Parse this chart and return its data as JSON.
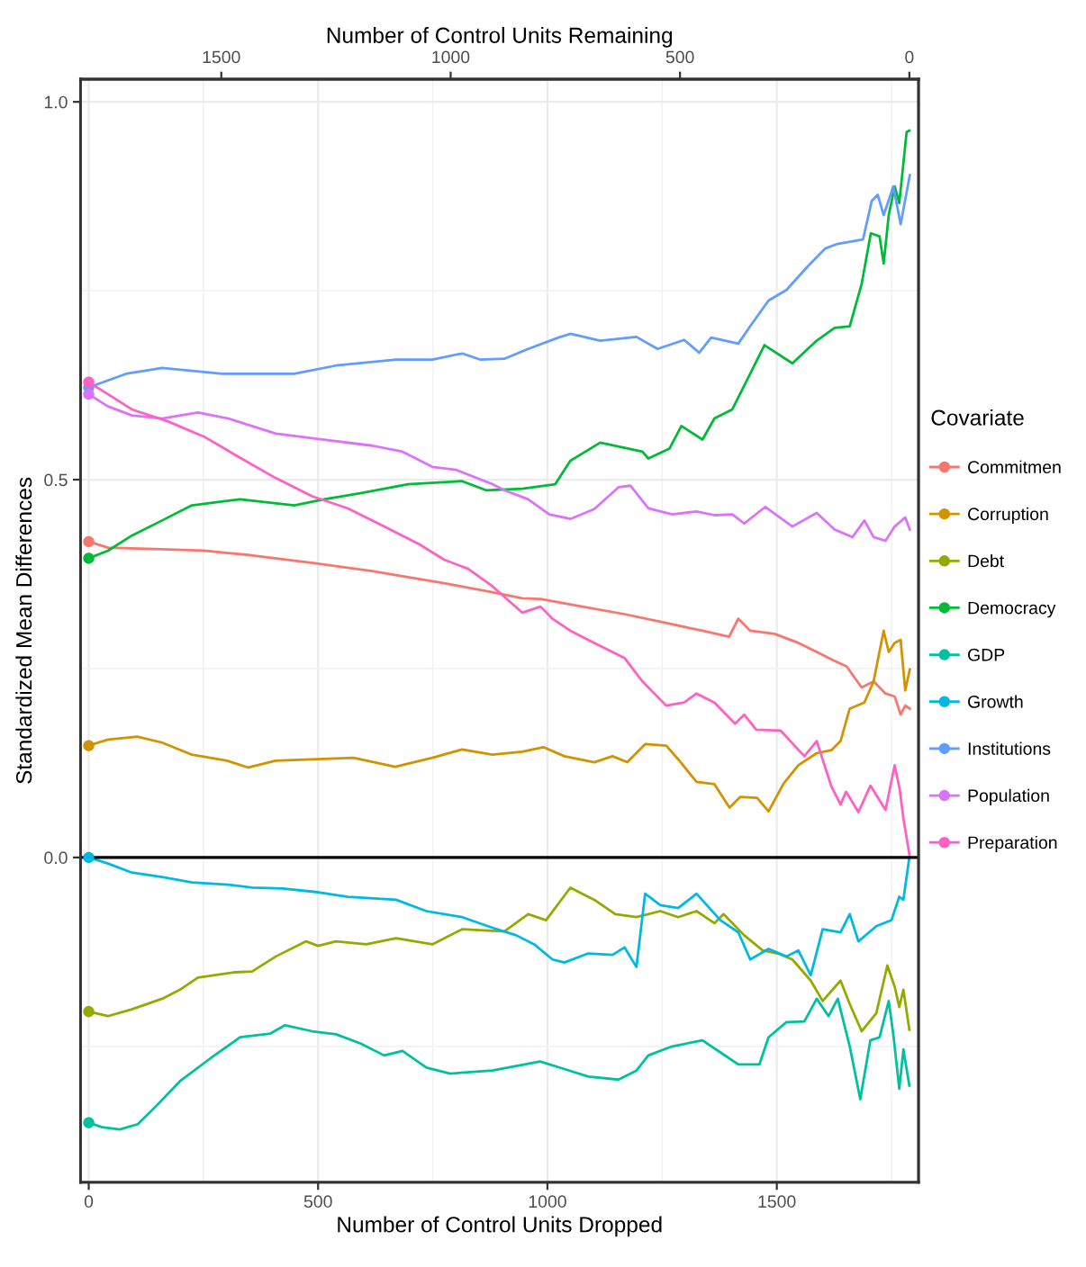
{
  "chart_data": {
    "type": "line",
    "xlabel": "Number of Control Units Dropped",
    "x2label": "Number of Control Units Remaining",
    "ylabel": "Standardized Mean Differences",
    "legend_title": "Covariate",
    "xlim": [
      -18,
      1809
    ],
    "xticks": [
      0,
      500,
      1000,
      1500
    ],
    "x2lim": [
      1807,
      -20
    ],
    "x2ticks": [
      1500,
      1000,
      500,
      0
    ],
    "ylim": [
      -0.43,
      1.03
    ],
    "yticks": [
      {
        "value": 0,
        "label": "0.0"
      },
      {
        "value": 0.5,
        "label": "0.5"
      },
      {
        "value": 1,
        "label": "1.0"
      }
    ],
    "grid": true,
    "legend": "right",
    "line_style": "solid",
    "ref_lines": [
      {
        "axis": "y",
        "value": 0,
        "color": "#000000"
      }
    ],
    "series": [
      {
        "name": "Commitmen",
        "color": "#f8766d",
        "x": [
          0,
          42,
          160,
          251,
          354,
          485,
          618,
          696,
          775,
          880,
          945,
          985,
          1076,
          1168,
          1246,
          1338,
          1396,
          1416,
          1442,
          1495,
          1547,
          1587,
          1626,
          1652,
          1685,
          1711,
          1737,
          1757,
          1770,
          1780,
          1790
        ],
        "values": [
          0.418,
          0.41,
          0.408,
          0.406,
          0.4,
          0.39,
          0.379,
          0.371,
          0.363,
          0.351,
          0.343,
          0.342,
          0.332,
          0.322,
          0.312,
          0.3,
          0.292,
          0.316,
          0.3,
          0.296,
          0.284,
          0.272,
          0.26,
          0.253,
          0.225,
          0.233,
          0.217,
          0.213,
          0.189,
          0.201,
          0.197
        ]
      },
      {
        "name": "Corruption",
        "color": "#d39200",
        "x": [
          0,
          42,
          106,
          160,
          225,
          302,
          348,
          407,
          498,
          577,
          668,
          749,
          814,
          880,
          945,
          991,
          1037,
          1102,
          1142,
          1174,
          1213,
          1259,
          1285,
          1325,
          1364,
          1397,
          1420,
          1457,
          1482,
          1515,
          1547,
          1587,
          1619,
          1639,
          1659,
          1691,
          1711,
          1733,
          1744,
          1757,
          1770,
          1780,
          1790
        ],
        "values": [
          0.148,
          0.156,
          0.16,
          0.152,
          0.136,
          0.128,
          0.119,
          0.128,
          0.13,
          0.132,
          0.12,
          0.132,
          0.143,
          0.136,
          0.14,
          0.146,
          0.134,
          0.126,
          0.134,
          0.126,
          0.15,
          0.148,
          0.13,
          0.1,
          0.097,
          0.066,
          0.08,
          0.079,
          0.061,
          0.098,
          0.122,
          0.138,
          0.142,
          0.154,
          0.197,
          0.205,
          0.233,
          0.3,
          0.272,
          0.284,
          0.288,
          0.221,
          0.249
        ]
      },
      {
        "name": "Debt",
        "color": "#93aa00",
        "x": [
          0,
          42,
          94,
          160,
          199,
          238,
          317,
          356,
          408,
          474,
          500,
          539,
          605,
          670,
          749,
          814,
          906,
          958,
          997,
          1050,
          1102,
          1148,
          1194,
          1246,
          1285,
          1325,
          1364,
          1384,
          1429,
          1469,
          1502,
          1534,
          1574,
          1600,
          1639,
          1659,
          1685,
          1717,
          1741,
          1757,
          1767,
          1776,
          1789
        ],
        "values": [
          -0.204,
          -0.21,
          -0.201,
          -0.187,
          -0.175,
          -0.159,
          -0.152,
          -0.151,
          -0.131,
          -0.111,
          -0.117,
          -0.111,
          -0.115,
          -0.107,
          -0.115,
          -0.095,
          -0.098,
          -0.075,
          -0.083,
          -0.04,
          -0.056,
          -0.075,
          -0.079,
          -0.071,
          -0.079,
          -0.071,
          -0.087,
          -0.075,
          -0.103,
          -0.123,
          -0.127,
          -0.135,
          -0.163,
          -0.19,
          -0.163,
          -0.194,
          -0.23,
          -0.206,
          -0.143,
          -0.171,
          -0.198,
          -0.175,
          -0.228
        ]
      },
      {
        "name": "Democracy",
        "color": "#00ba38",
        "x": [
          0,
          42,
          94,
          160,
          225,
          330,
          448,
          513,
          592,
          696,
          814,
          866,
          945,
          1017,
          1050,
          1115,
          1207,
          1220,
          1266,
          1292,
          1338,
          1364,
          1403,
          1442,
          1473,
          1534,
          1587,
          1626,
          1659,
          1685,
          1705,
          1724,
          1733,
          1744,
          1757,
          1767,
          1783,
          1789
        ],
        "values": [
          0.396,
          0.406,
          0.426,
          0.446,
          0.466,
          0.474,
          0.466,
          0.474,
          0.482,
          0.494,
          0.498,
          0.486,
          0.488,
          0.494,
          0.525,
          0.549,
          0.537,
          0.528,
          0.541,
          0.571,
          0.553,
          0.581,
          0.593,
          0.64,
          0.678,
          0.654,
          0.684,
          0.701,
          0.703,
          0.759,
          0.826,
          0.822,
          0.786,
          0.85,
          0.888,
          0.866,
          0.96,
          0.962
        ]
      },
      {
        "name": "GDP",
        "color": "#00c19f",
        "x": [
          0,
          29,
          68,
          107,
          147,
          199,
          265,
          330,
          396,
          428,
          487,
          539,
          592,
          644,
          684,
          736,
          788,
          880,
          984,
          1037,
          1089,
          1155,
          1194,
          1220,
          1272,
          1338,
          1377,
          1416,
          1462,
          1482,
          1521,
          1560,
          1587,
          1613,
          1633,
          1659,
          1682,
          1704,
          1724,
          1744,
          1754,
          1767,
          1776,
          1789
        ],
        "values": [
          -0.351,
          -0.357,
          -0.36,
          -0.353,
          -0.329,
          -0.296,
          -0.266,
          -0.238,
          -0.233,
          -0.222,
          -0.23,
          -0.234,
          -0.246,
          -0.262,
          -0.256,
          -0.278,
          -0.286,
          -0.282,
          -0.27,
          -0.28,
          -0.29,
          -0.294,
          -0.282,
          -0.262,
          -0.25,
          -0.242,
          -0.258,
          -0.274,
          -0.274,
          -0.238,
          -0.218,
          -0.217,
          -0.187,
          -0.21,
          -0.187,
          -0.25,
          -0.32,
          -0.242,
          -0.238,
          -0.19,
          -0.234,
          -0.306,
          -0.254,
          -0.302
        ]
      },
      {
        "name": "Growth",
        "color": "#00b9e3",
        "x": [
          0,
          42,
          94,
          160,
          225,
          304,
          356,
          422,
          500,
          565,
          670,
          736,
          814,
          880,
          932,
          971,
          1011,
          1037,
          1089,
          1142,
          1168,
          1194,
          1213,
          1246,
          1285,
          1325,
          1377,
          1416,
          1442,
          1482,
          1521,
          1547,
          1574,
          1600,
          1639,
          1659,
          1678,
          1717,
          1750,
          1767,
          1776,
          1789
        ],
        "values": [
          0.0,
          -0.008,
          -0.02,
          -0.026,
          -0.033,
          -0.036,
          -0.04,
          -0.041,
          -0.046,
          -0.052,
          -0.056,
          -0.071,
          -0.079,
          -0.093,
          -0.103,
          -0.115,
          -0.135,
          -0.139,
          -0.127,
          -0.129,
          -0.119,
          -0.145,
          -0.048,
          -0.063,
          -0.067,
          -0.048,
          -0.083,
          -0.099,
          -0.135,
          -0.121,
          -0.131,
          -0.123,
          -0.156,
          -0.095,
          -0.099,
          -0.075,
          -0.111,
          -0.091,
          -0.083,
          -0.052,
          -0.056,
          0.0
        ]
      },
      {
        "name": "Institutions",
        "color": "#619cff",
        "x": [
          0,
          81,
          160,
          291,
          448,
          539,
          670,
          749,
          814,
          853,
          906,
          958,
          1024,
          1050,
          1115,
          1194,
          1240,
          1298,
          1331,
          1357,
          1416,
          1442,
          1482,
          1521,
          1567,
          1606,
          1632,
          1688,
          1707,
          1720,
          1733,
          1754,
          1770,
          1790
        ],
        "values": [
          0.622,
          0.64,
          0.648,
          0.64,
          0.64,
          0.651,
          0.659,
          0.659,
          0.667,
          0.659,
          0.66,
          0.673,
          0.688,
          0.693,
          0.684,
          0.689,
          0.673,
          0.685,
          0.668,
          0.688,
          0.68,
          0.703,
          0.737,
          0.751,
          0.782,
          0.806,
          0.812,
          0.818,
          0.869,
          0.877,
          0.85,
          0.888,
          0.838,
          0.903
        ]
      },
      {
        "name": "Population",
        "color": "#db72fb",
        "x": [
          0,
          42,
          94,
          160,
          238,
          304,
          408,
          513,
          618,
          684,
          749,
          801,
          880,
          906,
          958,
          1004,
          1050,
          1102,
          1155,
          1181,
          1220,
          1272,
          1325,
          1364,
          1403,
          1429,
          1475,
          1534,
          1587,
          1626,
          1665,
          1691,
          1711,
          1737,
          1757,
          1780,
          1790
        ],
        "values": [
          0.613,
          0.597,
          0.585,
          0.581,
          0.589,
          0.581,
          0.561,
          0.553,
          0.545,
          0.537,
          0.517,
          0.513,
          0.494,
          0.486,
          0.474,
          0.454,
          0.448,
          0.461,
          0.49,
          0.492,
          0.462,
          0.454,
          0.458,
          0.453,
          0.454,
          0.442,
          0.464,
          0.438,
          0.456,
          0.434,
          0.424,
          0.446,
          0.424,
          0.419,
          0.438,
          0.45,
          0.434
        ]
      },
      {
        "name": "Preparation",
        "color": "#ff61c3",
        "x": [
          0,
          42,
          94,
          173,
          251,
          330,
          408,
          487,
          565,
          644,
          722,
          775,
          827,
          880,
          945,
          985,
          1011,
          1050,
          1102,
          1168,
          1207,
          1259,
          1298,
          1325,
          1364,
          1409,
          1429,
          1455,
          1508,
          1560,
          1587,
          1619,
          1639,
          1651,
          1678,
          1704,
          1737,
          1757,
          1768,
          1776,
          1789
        ],
        "values": [
          0.629,
          0.613,
          0.593,
          0.577,
          0.557,
          0.529,
          0.502,
          0.478,
          0.462,
          0.438,
          0.414,
          0.394,
          0.382,
          0.359,
          0.324,
          0.332,
          0.316,
          0.3,
          0.284,
          0.264,
          0.233,
          0.201,
          0.205,
          0.217,
          0.205,
          0.177,
          0.189,
          0.169,
          0.168,
          0.134,
          0.154,
          0.094,
          0.07,
          0.087,
          0.06,
          0.095,
          0.063,
          0.122,
          0.09,
          0.052,
          0.004
        ]
      },
      {
        "type": "scatter",
        "marker": "circle",
        "color": "#f8766d",
        "x": [
          0
        ],
        "values": [
          0.418
        ]
      },
      {
        "type": "scatter",
        "marker": "circle",
        "color": "#d39200",
        "x": [
          0
        ],
        "values": [
          0.148
        ]
      },
      {
        "type": "scatter",
        "marker": "circle",
        "color": "#93aa00",
        "x": [
          0
        ],
        "values": [
          -0.204
        ]
      },
      {
        "type": "scatter",
        "marker": "circle",
        "color": "#00ba38",
        "x": [
          0
        ],
        "values": [
          0.396
        ]
      },
      {
        "type": "scatter",
        "marker": "circle",
        "color": "#00c19f",
        "x": [
          0
        ],
        "values": [
          -0.351
        ]
      },
      {
        "type": "scatter",
        "marker": "circle",
        "color": "#00b9e3",
        "x": [
          0
        ],
        "values": [
          0.0
        ]
      },
      {
        "type": "scatter",
        "marker": "circle",
        "color": "#619cff",
        "x": [
          0
        ],
        "values": [
          0.622
        ]
      },
      {
        "type": "scatter",
        "marker": "circle",
        "color": "#db72fb",
        "x": [
          0
        ],
        "values": [
          0.613
        ]
      },
      {
        "type": "scatter",
        "marker": "circle",
        "color": "#ff61c3",
        "x": [
          0
        ],
        "values": [
          0.629
        ]
      }
    ]
  }
}
